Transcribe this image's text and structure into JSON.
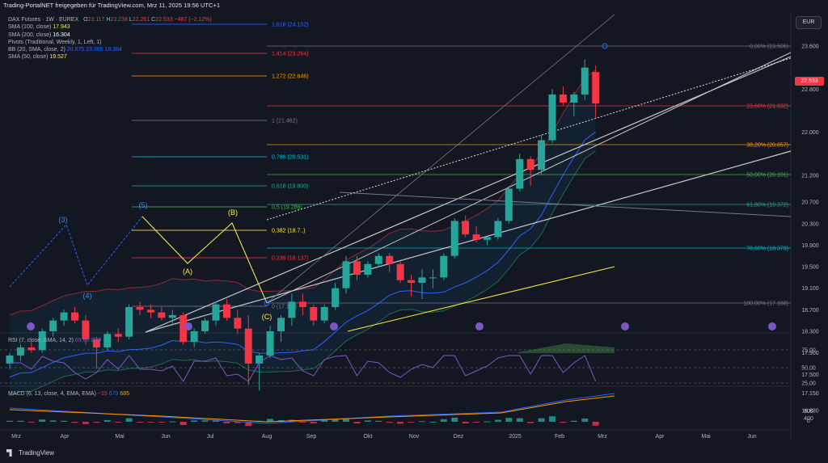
{
  "header": {
    "share_text": "Trading-PortalNET freigegeben für TradingView.com, Mrz 11, 2025 19:56 UTC+1"
  },
  "currency": "EUR",
  "symbol_line": {
    "name": "DAX Futures · 1W · EUREX",
    "open_label": "O",
    "open": "23.117",
    "high_label": "H",
    "high": "23.238",
    "low_label": "L",
    "low": "22.261",
    "close_label": "C",
    "close": "22.533",
    "change": "−487 (−2.12%)"
  },
  "indicators": [
    {
      "label": "SMA (100, close)",
      "value": "17.943",
      "color": "#ffeb3b"
    },
    {
      "label": "SMA (200, close)",
      "value": "16.304",
      "color": "#ffffff"
    },
    {
      "label": "Pivots (Traditional, Weekly, 1, Left, 1)",
      "value": "",
      "color": "#ffffff"
    },
    {
      "label": "BB (20, SMA, close, 2)",
      "value": "20.875  23.365  18.384",
      "color": "#2962ff"
    },
    {
      "label": "SMA (50, close)",
      "value": "19.527",
      "color": "#ffeb3b"
    }
  ],
  "chart_data": {
    "type": "candlestick",
    "title": "DAX Futures · 1W · EUREX",
    "y_axis_ticks": [
      "23.600",
      "22.800",
      "22.000",
      "21.200",
      "20.700",
      "20.300",
      "19.900",
      "19.500",
      "19.100",
      "18.700",
      "18.300",
      "17.900",
      "17.500",
      "17.150",
      "16.830"
    ],
    "x_axis_ticks": [
      "Mrz",
      "Apr",
      "Mai",
      "Jun",
      "Jul",
      "Aug",
      "Sep",
      "Okt",
      "Nov",
      "Dez",
      "2025",
      "Feb",
      "Mrz",
      "Apr",
      "Mai",
      "Jun"
    ],
    "last_price": "22.533",
    "candles_ohlc": [
      [
        17.7,
        17.9,
        17.6,
        17.85
      ],
      [
        17.85,
        18.05,
        17.75,
        18.0
      ],
      [
        18.0,
        18.1,
        17.9,
        17.95
      ],
      [
        17.95,
        18.35,
        17.9,
        18.3
      ],
      [
        18.3,
        18.55,
        18.2,
        18.5
      ],
      [
        18.5,
        18.7,
        18.4,
        18.65
      ],
      [
        18.65,
        18.75,
        18.45,
        18.5
      ],
      [
        18.5,
        18.6,
        18.05,
        18.15
      ],
      [
        18.15,
        18.2,
        17.6,
        18.0
      ],
      [
        18.0,
        18.3,
        17.95,
        18.25
      ],
      [
        18.25,
        18.35,
        18.1,
        18.2
      ],
      [
        18.2,
        18.8,
        18.15,
        18.75
      ],
      [
        18.75,
        18.85,
        18.6,
        18.7
      ],
      [
        18.7,
        18.8,
        18.55,
        18.65
      ],
      [
        18.65,
        18.75,
        18.5,
        18.55
      ],
      [
        18.55,
        18.7,
        18.4,
        18.6
      ],
      [
        18.6,
        18.65,
        18.05,
        18.1
      ],
      [
        18.1,
        18.35,
        18.0,
        18.3
      ],
      [
        18.3,
        18.55,
        18.25,
        18.5
      ],
      [
        18.5,
        18.85,
        18.4,
        18.8
      ],
      [
        18.8,
        18.9,
        18.5,
        18.55
      ],
      [
        18.55,
        18.7,
        18.25,
        18.35
      ],
      [
        18.35,
        18.6,
        17.3,
        17.7
      ],
      [
        17.7,
        17.9,
        17.2,
        17.85
      ],
      [
        17.85,
        18.4,
        17.8,
        18.3
      ],
      [
        18.3,
        18.6,
        18.1,
        18.55
      ],
      [
        18.55,
        19.0,
        18.4,
        18.85
      ],
      [
        18.85,
        19.0,
        18.6,
        18.75
      ],
      [
        18.75,
        18.8,
        18.4,
        18.5
      ],
      [
        18.5,
        18.8,
        18.45,
        18.75
      ],
      [
        18.75,
        19.2,
        18.7,
        19.1
      ],
      [
        19.1,
        19.7,
        19.0,
        19.6
      ],
      [
        19.6,
        19.7,
        19.25,
        19.35
      ],
      [
        19.35,
        19.6,
        19.3,
        19.55
      ],
      [
        19.55,
        19.75,
        19.5,
        19.7
      ],
      [
        19.7,
        19.75,
        19.4,
        19.55
      ],
      [
        19.55,
        19.6,
        19.2,
        19.25
      ],
      [
        19.25,
        19.35,
        18.95,
        19.2
      ],
      [
        19.2,
        19.45,
        18.9,
        19.3
      ],
      [
        19.3,
        19.45,
        19.1,
        19.3
      ],
      [
        19.3,
        19.75,
        19.25,
        19.7
      ],
      [
        19.7,
        20.4,
        19.65,
        20.35
      ],
      [
        20.35,
        20.45,
        20.05,
        20.1
      ],
      [
        20.1,
        20.25,
        19.95,
        20.0
      ],
      [
        20.0,
        20.05,
        19.9,
        20.05
      ],
      [
        20.05,
        20.4,
        20.0,
        20.35
      ],
      [
        20.35,
        21.0,
        20.3,
        20.95
      ],
      [
        20.95,
        21.6,
        20.9,
        21.5
      ],
      [
        21.5,
        21.55,
        21.0,
        21.3
      ],
      [
        21.3,
        21.95,
        21.2,
        21.85
      ],
      [
        21.85,
        22.8,
        21.8,
        22.7
      ],
      [
        22.7,
        22.85,
        22.5,
        22.55
      ],
      [
        22.55,
        22.75,
        22.3,
        22.7
      ],
      [
        22.7,
        23.35,
        22.6,
        23.2
      ],
      [
        23.117,
        23.238,
        22.261,
        22.533
      ]
    ],
    "fib_left": [
      {
        "label": "1,618 (24.152)",
        "color": "#2962ff"
      },
      {
        "label": "1,414 (23.264)",
        "color": "#f23645"
      },
      {
        "label": "1,272 (22.646)",
        "color": "#ff9800"
      },
      {
        "label": "1 (21.462)",
        "color": "#787b86"
      },
      {
        "label": "0,786 (20.531)",
        "color": "#00bcd4"
      },
      {
        "label": "0,618 (19.800)",
        "color": "#26a69a"
      },
      {
        "label": "0,5 (19.286)",
        "color": "#4caf50"
      },
      {
        "label": "0,382 (18.7..)",
        "color": "#ffeb3b"
      },
      {
        "label": "0,236 (18.137)",
        "color": "#f23645"
      },
      {
        "label": "0 (17.110)",
        "color": "#787b86"
      }
    ],
    "fib_right": [
      {
        "label": "0,00% (23.506)",
        "color": "#787b86"
      },
      {
        "label": "23,60% (21.832)",
        "color": "#f23645"
      },
      {
        "label": "38,20% (20.857)",
        "color": "#ff9800"
      },
      {
        "label": "50,00% (20.101)",
        "color": "#4caf50"
      },
      {
        "label": "61,80% (19.372)",
        "color": "#26a69a"
      },
      {
        "label": "78,60% (18.379)",
        "color": "#00bcd4"
      },
      {
        "label": "100,00% (17.188)",
        "color": "#787b86"
      }
    ],
    "wave_labels": [
      "(3)",
      "(4)",
      "(5)",
      "(A)",
      "(B)",
      "(C)"
    ],
    "rsi": {
      "label": "RSI (7, close, SMA, 14, 2)",
      "value": "69,60 Ø Ø",
      "ticks": [
        "75,00",
        "50,00",
        "25,00"
      ]
    },
    "macd": {
      "label": "MACD (6, 13, close, 4, EMA, EMA)",
      "values": [
        "−15",
        "670",
        "685"
      ],
      "ticks": [
        "800",
        "400",
        "0"
      ]
    }
  },
  "footer": {
    "brand": "TradingView"
  }
}
